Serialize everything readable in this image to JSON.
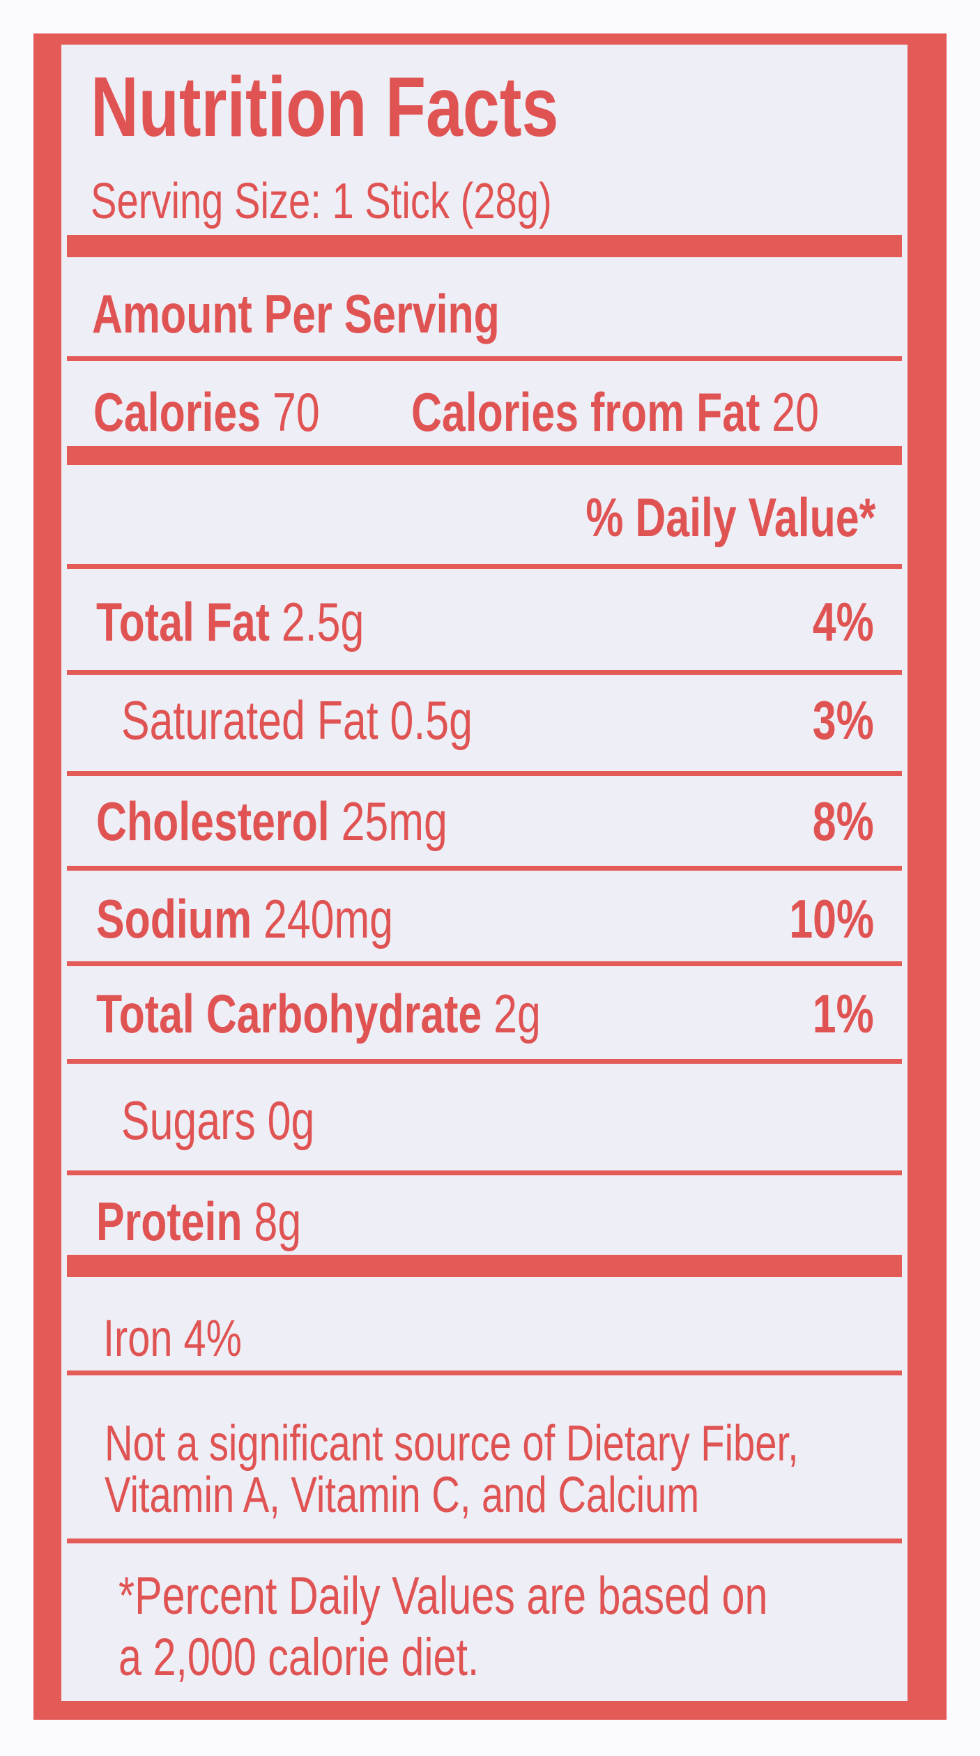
{
  "header": {
    "title": "Nutrition Facts",
    "serving_size": "Serving Size: 1 Stick (28g)"
  },
  "amount_per_serving": "Amount Per Serving",
  "calories": {
    "label": "Calories",
    "value": "70",
    "fat_label": "Calories from Fat",
    "fat_value": "20"
  },
  "daily_value_header": "% Daily Value*",
  "nutrients": [
    {
      "label": "Total Fat",
      "amount": "2.5g",
      "dv": "4%",
      "indent": false
    },
    {
      "label": "Saturated Fat",
      "amount": "0.5g",
      "dv": "3%",
      "indent": true
    },
    {
      "label": "Cholesterol",
      "amount": "25mg",
      "dv": "8%",
      "indent": false
    },
    {
      "label": "Sodium",
      "amount": "240mg",
      "dv": "10%",
      "indent": false
    },
    {
      "label": "Total Carbohydrate",
      "amount": "2g",
      "dv": "1%",
      "indent": false
    },
    {
      "label": "Sugars",
      "amount": "0g",
      "indent": true
    },
    {
      "label": "Protein",
      "amount": "8g",
      "indent": false
    }
  ],
  "vitamins": "Iron 4%",
  "note": [
    "Not a significant source of Dietary Fiber,",
    "Vitamin A, Vitamin C, and Calcium"
  ],
  "footnote": [
    "*Percent Daily Values are based on",
    "a 2,000 calorie diet."
  ]
}
